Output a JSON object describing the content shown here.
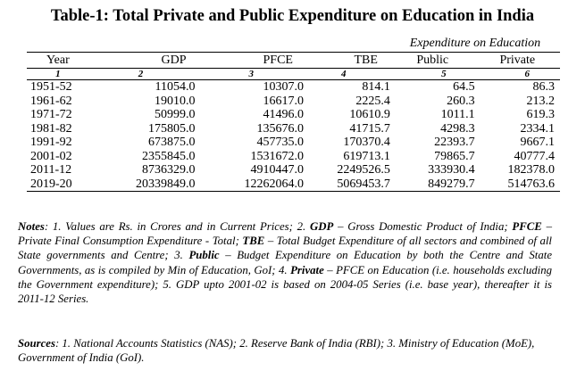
{
  "title": "Table-1: Total Private and Public Expenditure on Education in India",
  "group_header": "Expenditure on Education",
  "columns": [
    "Year",
    "GDP",
    "PFCE",
    "TBE",
    "Public",
    "Private"
  ],
  "column_numbers": [
    "1",
    "2",
    "3",
    "4",
    "5",
    "6"
  ],
  "rows": [
    [
      "1951-52",
      "11054.0",
      "10307.0",
      "814.1",
      "64.5",
      "86.3"
    ],
    [
      "1961-62",
      "19010.0",
      "16617.0",
      "2225.4",
      "260.3",
      "213.2"
    ],
    [
      "1971-72",
      "50999.0",
      "41496.0",
      "10610.9",
      "1011.1",
      "619.3"
    ],
    [
      "1981-82",
      "175805.0",
      "135676.0",
      "41715.7",
      "4298.3",
      "2334.1"
    ],
    [
      "1991-92",
      "673875.0",
      "457735.0",
      "170370.4",
      "22393.7",
      "9667.1"
    ],
    [
      "2001-02",
      "2355845.0",
      "1531672.0",
      "619713.1",
      "79865.7",
      "40777.4"
    ],
    [
      "2011-12",
      "8736329.0",
      "4910447.0",
      "2249526.5",
      "333930.4",
      "182378.0"
    ],
    [
      "2019-20",
      "20339849.0",
      "12262064.0",
      "5069453.7",
      "849279.7",
      "514763.6"
    ]
  ],
  "notes": {
    "label": "Notes",
    "t1": ": 1. Values are Rs. in Crores and in Current Prices; 2. ",
    "k_gdp": "GDP",
    "t2": " – Gross Domestic Product of India; ",
    "k_pfce": "PFCE",
    "t3": " – Private Final Consumption Expenditure - Total; ",
    "k_tbe": "TBE",
    "t4": " – Total Budget Expenditure of all sectors and combined of all State governments and Centre; 3. ",
    "k_public": "Public",
    "t5": " – Budget Expenditure on Education by both the Centre and State Governments, as is compiled by Min of Education, GoI; 4. ",
    "k_private": "Private",
    "t6": " – PFCE on Education (i.e. households excluding the Government expenditure); 5. GDP upto 2001-02 is based on 2004-05 Series (i.e. base year), thereafter it is 2011-12 Series."
  },
  "sources": {
    "label": "Sources",
    "text": ": 1. National Accounts Statistics (NAS); 2. Reserve Bank of India (RBI); 3. Ministry of Education (MoE), Government of India (GoI)."
  }
}
